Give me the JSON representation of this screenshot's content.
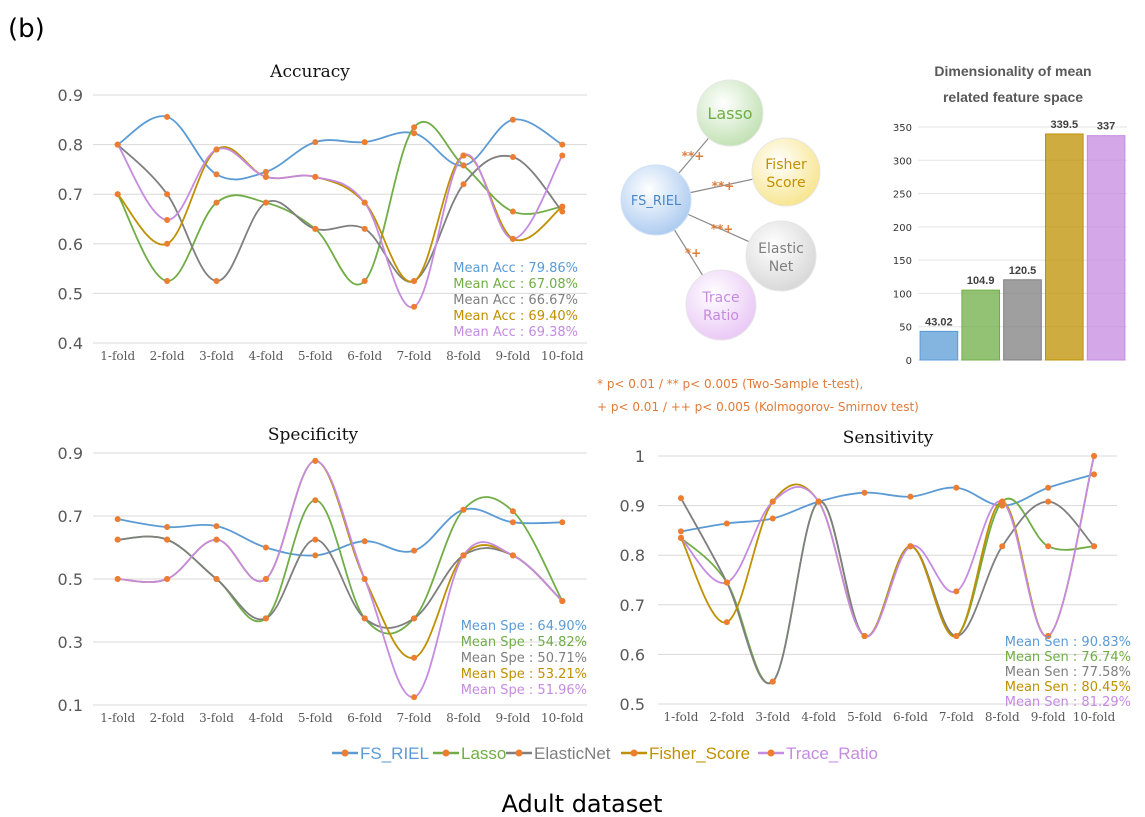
{
  "panel_label": "(b)",
  "dataset_label": "Adult dataset",
  "series_colors": {
    "FS_RIEL": "#5b9bd5",
    "Lasso": "#70ad47",
    "ElasticNet": "#7f7f7f",
    "Fisher_Score": "#bf9000",
    "Trace_Ratio": "#c58be0"
  },
  "marker_color": "#ed7d31",
  "legend": [
    "FS_RIEL",
    "Lasso",
    "ElasticNet",
    "Fisher_Score",
    "Trace_Ratio"
  ],
  "significance_notes": [
    "* p< 0.01  / ** p< 0.005 (Two-Sample t-test),",
    "+ p< 0.01 / ++ p< 0.005 (Kolmogorov- Smirnov test)"
  ],
  "diagram": {
    "center": "FS_RIEL",
    "nodes": [
      {
        "label": "Lasso",
        "mark": "**+",
        "color": "#70ad47"
      },
      {
        "label": "Fisher Score",
        "mark": "**+",
        "color": "#bf9000"
      },
      {
        "label": "Elastic Net",
        "mark": "**+",
        "color": "#7f7f7f"
      },
      {
        "label": "Trace Ratio",
        "mark": "*+",
        "color": "#c58be0"
      }
    ]
  },
  "chart_data": [
    {
      "type": "line",
      "title": "Accuracy",
      "categories": [
        "1-fold",
        "2-fold",
        "3-fold",
        "4-fold",
        "5-fold",
        "6-fold",
        "7-fold",
        "8-fold",
        "9-fold",
        "10-fold"
      ],
      "ylim": [
        0.4,
        0.9
      ],
      "yticks": [
        "0.4",
        "0.5",
        "0.6",
        "0.7",
        "0.8",
        "0.9"
      ],
      "grid": true,
      "series": [
        {
          "name": "FS_RIEL",
          "values": [
            0.8,
            0.856,
            0.74,
            0.745,
            0.805,
            0.805,
            0.823,
            0.758,
            0.85,
            0.8
          ]
        },
        {
          "name": "Lasso",
          "values": [
            0.7,
            0.525,
            0.683,
            0.683,
            0.63,
            0.525,
            0.835,
            0.758,
            0.665,
            0.675
          ]
        },
        {
          "name": "ElasticNet",
          "values": [
            0.8,
            0.7,
            0.525,
            0.683,
            0.63,
            0.63,
            0.525,
            0.72,
            0.775,
            0.665
          ]
        },
        {
          "name": "Fisher_Score",
          "values": [
            0.7,
            0.6,
            0.79,
            0.735,
            0.735,
            0.683,
            0.525,
            0.778,
            0.61,
            0.675
          ]
        },
        {
          "name": "Trace_Ratio",
          "values": [
            0.8,
            0.648,
            0.79,
            0.735,
            0.735,
            0.683,
            0.473,
            0.778,
            0.61,
            0.778
          ]
        }
      ],
      "annotations": [
        "Mean Acc : 79.86%",
        "Mean Acc : 67.08%",
        "Mean Acc : 66.67%",
        "Mean Acc : 69.40%",
        "Mean Acc : 69.38%"
      ]
    },
    {
      "type": "line",
      "title": "Specificity",
      "categories": [
        "1-fold",
        "2-fold",
        "3-fold",
        "4-fold",
        "5-fold",
        "6-fold",
        "7-fold",
        "8-fold",
        "9-fold",
        "10-fold"
      ],
      "ylim": [
        0.1,
        0.9
      ],
      "yticks": [
        "0.1",
        "0.3",
        "0.5",
        "0.7",
        "0.9"
      ],
      "grid": true,
      "series": [
        {
          "name": "FS_RIEL",
          "values": [
            0.69,
            0.665,
            0.668,
            0.6,
            0.575,
            0.62,
            0.59,
            0.72,
            0.68,
            0.68
          ]
        },
        {
          "name": "Lasso",
          "values": [
            0.625,
            0.625,
            0.5,
            0.375,
            0.75,
            0.375,
            0.375,
            0.72,
            0.715,
            0.43
          ]
        },
        {
          "name": "ElasticNet",
          "values": [
            0.625,
            0.625,
            0.5,
            0.375,
            0.625,
            0.375,
            0.375,
            0.575,
            0.575,
            0.43
          ]
        },
        {
          "name": "Fisher_Score",
          "values": [
            0.5,
            0.5,
            0.625,
            0.5,
            0.875,
            0.5,
            0.25,
            0.575,
            0.575,
            0.43
          ]
        },
        {
          "name": "Trace_Ratio",
          "values": [
            0.5,
            0.5,
            0.625,
            0.5,
            0.875,
            0.5,
            0.125,
            0.575,
            0.575,
            0.43
          ]
        }
      ],
      "annotations": [
        "Mean Spe : 64.90%",
        "Mean Spe : 54.82%",
        "Mean Spe : 50.71%",
        "Mean Spe : 53.21%",
        "Mean Spe : 51.96%"
      ]
    },
    {
      "type": "line",
      "title": "Sensitivity",
      "categories": [
        "1-fold",
        "2-fold",
        "3-fold",
        "4-fold",
        "5-fold",
        "6-fold",
        "7-fold",
        "8-fold",
        "9-fold",
        "10-fold"
      ],
      "ylim": [
        0.5,
        1.0
      ],
      "yticks": [
        "0.5",
        "0.6",
        "0.7",
        "0.8",
        "0.9",
        "1"
      ],
      "grid": true,
      "series": [
        {
          "name": "FS_RIEL",
          "values": [
            0.848,
            0.864,
            0.874,
            0.908,
            0.926,
            0.918,
            0.936,
            0.9,
            0.936,
            0.963
          ]
        },
        {
          "name": "Lasso",
          "values": [
            0.835,
            0.745,
            0.545,
            0.908,
            0.637,
            0.818,
            0.637,
            0.908,
            0.818,
            0.818
          ]
        },
        {
          "name": "ElasticNet",
          "values": [
            0.915,
            0.745,
            0.545,
            0.908,
            0.637,
            0.818,
            0.637,
            0.818,
            0.908,
            0.818
          ]
        },
        {
          "name": "Fisher_Score",
          "values": [
            0.835,
            0.665,
            0.908,
            0.908,
            0.637,
            0.818,
            0.637,
            0.908,
            0.637,
            1.0
          ]
        },
        {
          "name": "Trace_Ratio",
          "values": [
            0.835,
            0.745,
            0.908,
            0.908,
            0.637,
            0.818,
            0.727,
            0.908,
            0.637,
            1.0
          ]
        }
      ],
      "annotations": [
        "Mean Sen : 90.83%",
        "Mean Sen : 76.74%",
        "Mean Sen : 77.58%",
        "Mean Sen : 80.45%",
        "Mean Sen : 81.29%"
      ]
    },
    {
      "type": "bar",
      "title": "Dimensionality of mean related feature space",
      "categories": [
        "FS_RIEL",
        "Lasso",
        "ElasticNet",
        "Fisher_Score",
        "Trace_Ratio"
      ],
      "values": [
        43.02,
        104.9,
        120.5,
        339.5,
        337
      ],
      "value_labels": [
        "43.02",
        "104.9",
        "120.5",
        "339.5",
        "337"
      ],
      "ylim": [
        0,
        350
      ],
      "yticks": [
        "0",
        "50",
        "100",
        "150",
        "200",
        "250",
        "300",
        "350"
      ],
      "grid": true
    }
  ]
}
